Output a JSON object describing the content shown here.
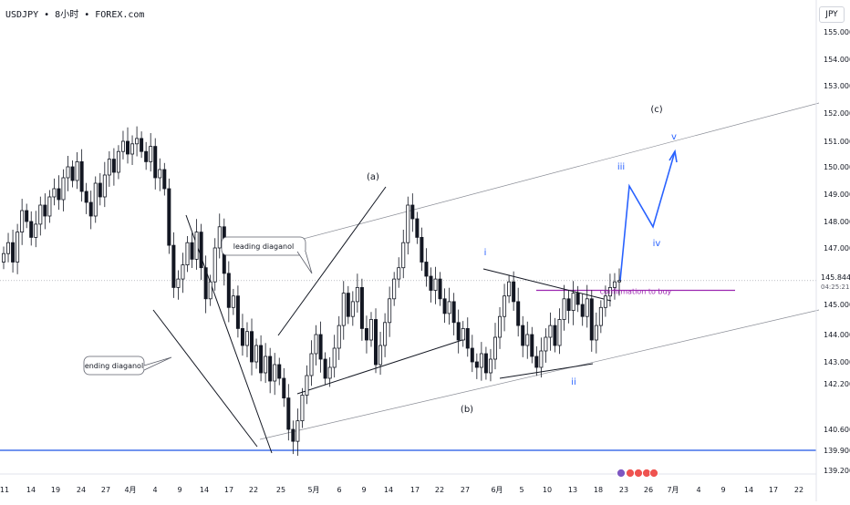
{
  "header": {
    "symbol_line": "USDJPY • 8小时 • FOREX.com",
    "currency": "JPY"
  },
  "chart_data": {
    "type": "candlestick",
    "symbol": "USDJPY",
    "timeframe": "8小时",
    "source": "FOREX.com",
    "ylim": [
      139.2,
      155.5
    ],
    "y_ticks": [
      139.2,
      139.9,
      140.6,
      142.2,
      143.0,
      144.0,
      145.0,
      147.0,
      148.0,
      149.0,
      150.0,
      151.0,
      152.0,
      153.0,
      154.0,
      155.0
    ],
    "y_tick_labels": [
      "139.200",
      "139.900",
      "140.600",
      "142.200",
      "143.000",
      "144.000",
      "145.000",
      "147.000",
      "148.000",
      "149.000",
      "150.000",
      "151.000",
      "152.000",
      "153.000",
      "154.000",
      "155.000"
    ],
    "x_tick_labels": [
      "11",
      "14",
      "19",
      "24",
      "27",
      "4月",
      "4",
      "9",
      "14",
      "17",
      "22",
      "25",
      "5月",
      "6",
      "9",
      "14",
      "17",
      "22",
      "27",
      "6月",
      "5",
      "10",
      "13",
      "18",
      "23",
      "26",
      "7月",
      "4",
      "9",
      "14",
      "17",
      "22"
    ],
    "price_label": {
      "value": 145.844,
      "text": "145.844",
      "countdown": "04:25:21"
    },
    "horizontal_line": {
      "value": 139.9,
      "color": "#1e53e5"
    },
    "purple_level": {
      "value": 145.5,
      "label": "confirmation to buy",
      "color": "#9c27b0"
    },
    "wave_labels": [
      {
        "text": "(a)",
        "color": "#131722"
      },
      {
        "text": "(b)",
        "color": "#131722"
      },
      {
        "text": "(c)",
        "color": "#131722"
      },
      {
        "text": "i",
        "color": "#2962ff"
      },
      {
        "text": "ii",
        "color": "#2962ff"
      },
      {
        "text": "iii",
        "color": "#2962ff"
      },
      {
        "text": "iv",
        "color": "#2962ff"
      },
      {
        "text": "v",
        "color": "#2962ff"
      }
    ],
    "callouts": [
      {
        "text": "leading diaganol"
      },
      {
        "text": "ending diaganol"
      }
    ],
    "projection_path": [
      145.844,
      149.3,
      147.8,
      150.6
    ],
    "series": [
      {
        "values": [
          146.8,
          147.2,
          146.5,
          147.6,
          148.4,
          148.0,
          147.4,
          147.9,
          148.6,
          148.2,
          148.9,
          149.2,
          148.8,
          149.6,
          150.0,
          149.5,
          150.2,
          149.1,
          148.7,
          148.2,
          149.4,
          148.9,
          149.7,
          150.3,
          149.8,
          150.6,
          151.0,
          150.5,
          150.9,
          151.1,
          150.6,
          150.2,
          150.8,
          149.6,
          149.9,
          149.2,
          147.1,
          145.6,
          145.9,
          146.4,
          147.2,
          146.6,
          147.6,
          146.3,
          145.2,
          145.8,
          147.0,
          147.8,
          146.1,
          144.9,
          145.3,
          144.2,
          143.6,
          144.1,
          143.0,
          143.6,
          142.6,
          143.2,
          142.3,
          142.9,
          142.4,
          141.7,
          140.6,
          140.2,
          140.9,
          141.8,
          142.5,
          143.3,
          144.0,
          143.1,
          142.4,
          142.8,
          143.5,
          144.3,
          145.4,
          144.6,
          145.1,
          145.6,
          144.2,
          143.8,
          144.5,
          142.9,
          143.6,
          144.4,
          145.2,
          145.9,
          146.3,
          147.2,
          148.6,
          148.1,
          147.4,
          146.5,
          146.0,
          145.5,
          145.9,
          145.2,
          144.7,
          145.1,
          144.4,
          143.8,
          144.2,
          143.5,
          143.0,
          142.8,
          143.3,
          142.6,
          143.1,
          143.9,
          144.6,
          145.3,
          145.8,
          145.1,
          144.3,
          143.6,
          144.0,
          143.2,
          142.8,
          143.4,
          143.9,
          144.3,
          143.6,
          144.5,
          145.2,
          144.8,
          145.4,
          145.0,
          144.6,
          145.2,
          143.8,
          144.3,
          144.9,
          145.3,
          145.6,
          145.8,
          145.844
        ]
      }
    ]
  }
}
